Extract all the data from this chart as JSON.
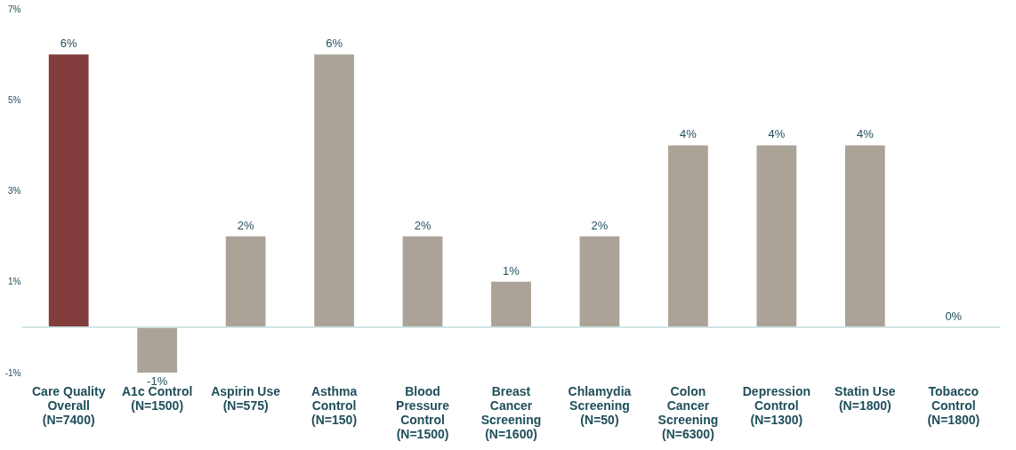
{
  "chart_data": {
    "type": "bar",
    "categories": [
      "Care Quality\nOverall\n(N=7400)",
      "A1c Control\n(N=1500)",
      "Aspirin Use\n(N=575)",
      "Asthma\nControl\n(N=150)",
      "Blood\nPressure\nControl\n(N=1500)",
      "Breast\nCancer\nScreening\n(N=1600)",
      "Chlamydia\nScreening\n(N=50)",
      "Colon\nCancer\nScreening\n(N=6300)",
      "Depression\nControl\n(N=1300)",
      "Statin Use\n(N=1800)",
      "Tobacco\nControl\n(N=1800)"
    ],
    "values": [
      6,
      -1,
      2,
      6,
      2,
      1,
      2,
      4,
      4,
      4,
      0
    ],
    "colors": [
      "#833c3c",
      "#aba398",
      "#aba398",
      "#aba398",
      "#aba398",
      "#aba398",
      "#aba398",
      "#aba398",
      "#aba398",
      "#aba398",
      "#aba398"
    ],
    "value_labels": [
      "6%",
      "-1%",
      "2%",
      "6%",
      "2%",
      "1%",
      "2%",
      "4%",
      "4%",
      "4%",
      "0%"
    ],
    "ylim": [
      -1,
      7
    ],
    "yticks": [
      {
        "value": -1,
        "label": "-1%"
      },
      {
        "value": 1,
        "label": "1%"
      },
      {
        "value": 3,
        "label": "3%"
      },
      {
        "value": 5,
        "label": "5%"
      },
      {
        "value": 7,
        "label": "7%"
      }
    ],
    "grid": false
  }
}
